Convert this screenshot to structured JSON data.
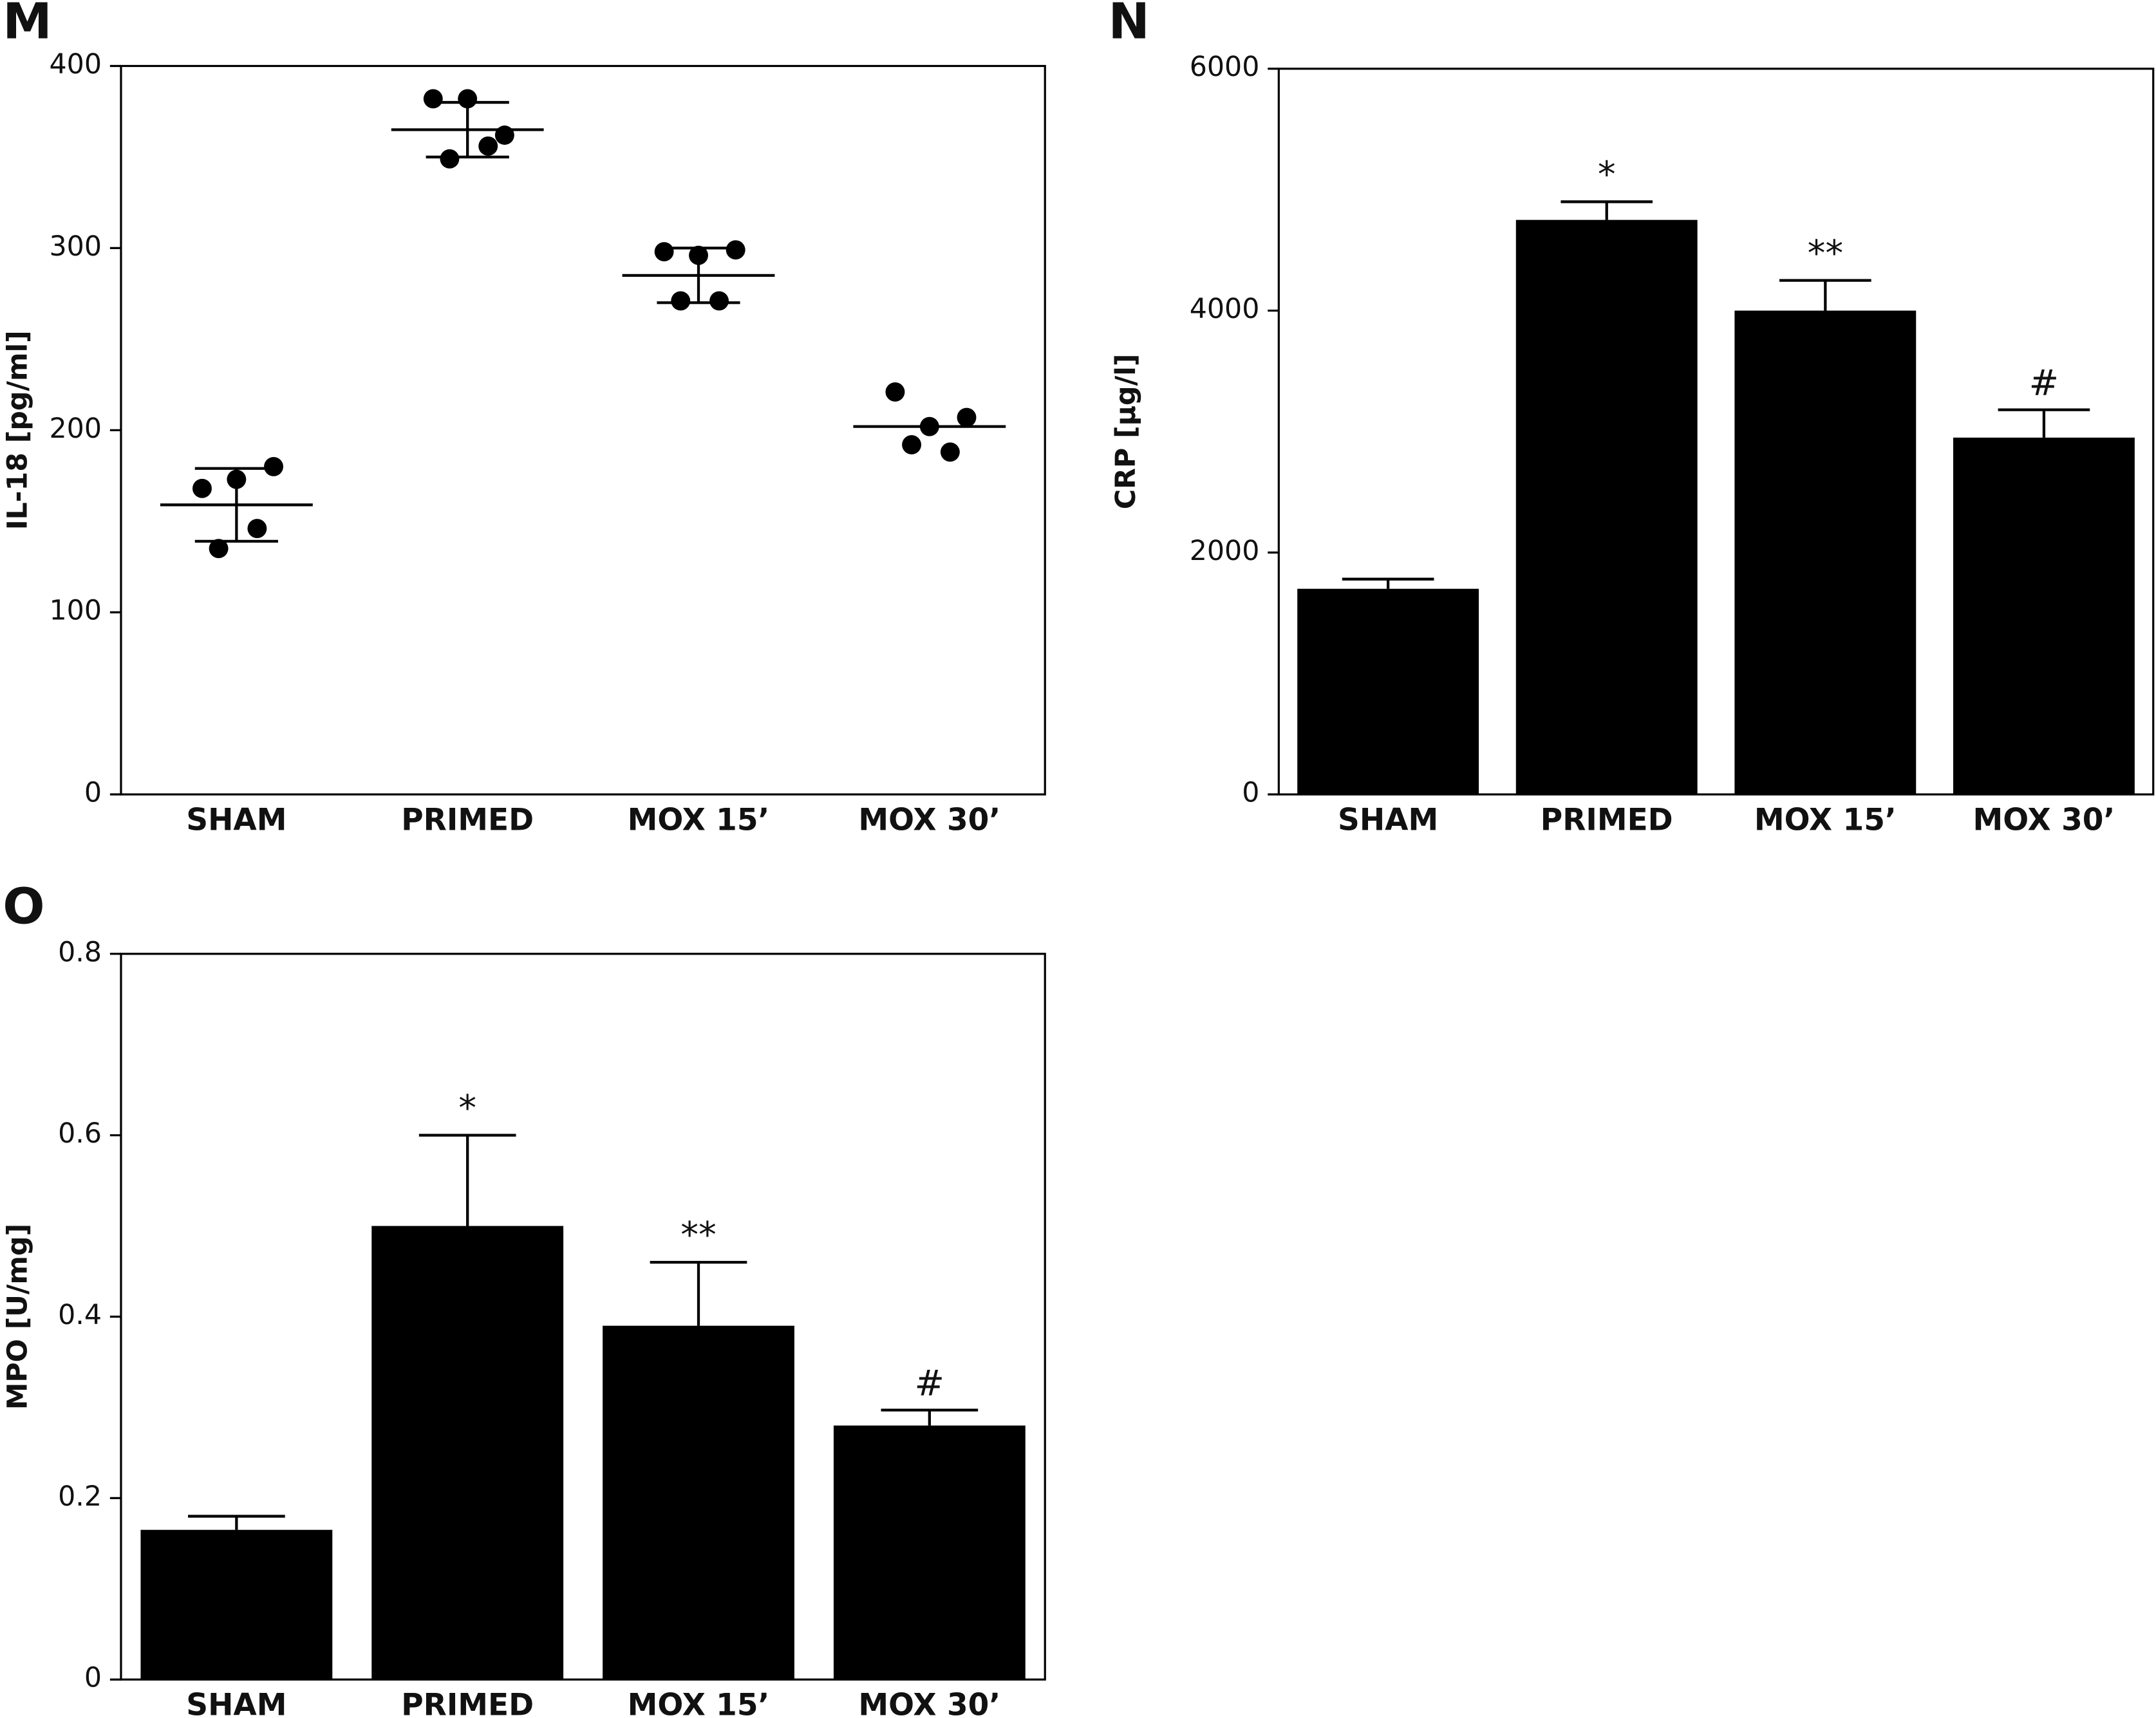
{
  "chart_data": [
    {
      "type": "dot",
      "panel": "M",
      "ylabel": "IL-18 [pg/ml]",
      "categories": [
        "SHAM",
        "PRIMED",
        "MOX 15’",
        "MOX 30’"
      ],
      "points": [
        [
          168,
          173,
          180,
          146,
          135
        ],
        [
          382,
          382,
          362,
          356,
          349
        ],
        [
          298,
          296,
          299,
          271,
          271
        ],
        [
          221,
          202,
          207,
          188,
          192
        ]
      ],
      "mean": [
        159,
        365,
        285,
        202
      ],
      "sd": [
        20,
        15,
        15,
        null
      ],
      "color": "#000000",
      "ylim": [
        0,
        400
      ],
      "yticks": [
        0,
        100,
        200,
        300,
        400
      ]
    },
    {
      "type": "bar",
      "panel": "N",
      "ylabel": "CRP [µg/l]",
      "categories": [
        "SHAM",
        "PRIMED",
        "MOX 15’",
        "MOX 30’"
      ],
      "values": [
        1700,
        4750,
        4000,
        2950
      ],
      "errors": [
        80,
        150,
        250,
        230
      ],
      "annotations": [
        null,
        "*",
        "**",
        "#"
      ],
      "color": "#000000",
      "ylim": [
        0,
        6000
      ],
      "yticks": [
        0,
        2000,
        4000,
        6000
      ]
    },
    {
      "type": "bar",
      "panel": "O",
      "ylabel": "MPO [U/mg]",
      "categories": [
        "SHAM",
        "PRIMED",
        "MOX 15’",
        "MOX 30’"
      ],
      "values": [
        0.165,
        0.5,
        0.39,
        0.28
      ],
      "errors": [
        0.015,
        0.1,
        0.07,
        0.017
      ],
      "annotations": [
        null,
        "*",
        "**",
        "#"
      ],
      "color": "#000000",
      "ylim": [
        0,
        0.8
      ],
      "yticks": [
        0,
        0.2,
        0.4,
        0.6,
        0.8
      ]
    }
  ]
}
